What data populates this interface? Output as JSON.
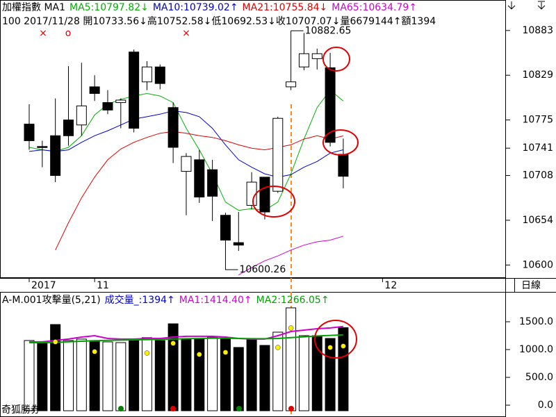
{
  "header": {
    "line1": [
      {
        "text": "加權指數 MA1",
        "color": "#000000"
      },
      {
        "text": "MA5:10797.82↓",
        "color": "#00b000"
      },
      {
        "text": "MA10:10739.02↑",
        "color": "#0000cc"
      },
      {
        "text": "MA21:10755.84↓",
        "color": "#e00000"
      },
      {
        "text": "MA65:10634.79↑",
        "color": "#d000d0"
      }
    ],
    "line2": "100 2017/11/28 開10733.56↓高10752.58↓低10692.53↓收10707.07↓量6679144↑額1394",
    "markers": [
      {
        "text": "×",
        "color": "#e00000"
      },
      {
        "text": "o",
        "color": "#e00000"
      },
      {
        "text": "×",
        "color": "#e00000"
      }
    ]
  },
  "chart_data": [
    {
      "type": "candlestick",
      "categories": [
        "2017",
        null,
        null,
        null,
        null,
        "11",
        null,
        null,
        null,
        null,
        null,
        null,
        null,
        null,
        null,
        null,
        null,
        null,
        null,
        null,
        null,
        null,
        null,
        null,
        null,
        null,
        null,
        "12"
      ],
      "open": [
        10770,
        10743,
        10756,
        10775,
        10769,
        10815,
        10796,
        10796,
        10857,
        10821,
        10839,
        10790,
        10713,
        10727,
        10715,
        10660,
        10627,
        10672,
        10706,
        10689,
        10815,
        10839,
        10849,
        10838,
        10733.56,
        null,
        null,
        null
      ],
      "high": [
        10794,
        10750,
        10801,
        10840,
        10844,
        10829,
        10811,
        10801,
        10860,
        10846,
        10842,
        10796,
        10735,
        10739,
        10727,
        10663,
        10664,
        10712,
        10706,
        10779,
        10882.65,
        10880,
        10861,
        10856,
        10752.58,
        null,
        null,
        null
      ],
      "low": [
        10739,
        10718,
        10700,
        10744,
        10756,
        10798,
        10782,
        10765,
        10760,
        10811,
        10812,
        10723,
        10660,
        10675,
        10653,
        10600.26,
        10617,
        10667,
        10655,
        10687,
        10811,
        10835,
        10836,
        10743,
        10692.53,
        null,
        null,
        null
      ],
      "close": [
        10750,
        10742,
        10708,
        10756,
        10792,
        10807,
        10787,
        10799,
        10765,
        10839,
        10819,
        10742,
        10731,
        10682,
        10683,
        10630,
        10624,
        10700,
        10664,
        10777,
        10821,
        10855,
        10855,
        10748,
        10707.07,
        null,
        null,
        null
      ],
      "up_color": "#ffffff",
      "down_color": "#000000",
      "series": [
        {
          "name": "MA5",
          "color": "#00b000",
          "values": [
            10742,
            10739,
            10737,
            10742,
            10756,
            10781,
            10794,
            10800,
            10804,
            10807,
            10804,
            10796,
            10765,
            10739,
            10710,
            10676,
            10666,
            10668,
            10666,
            10676,
            10710,
            10752,
            10790,
            10811,
            10797.82,
            null,
            null,
            null
          ]
        },
        {
          "name": "MA10",
          "color": "#0000cc",
          "values": [
            10737,
            10739,
            10737,
            10739,
            10748,
            10756,
            10762,
            10769,
            10776,
            10779,
            10782,
            10786,
            10784,
            10779,
            10765,
            10745,
            10727,
            10718,
            10710,
            10706,
            10709,
            10718,
            10725,
            10735,
            10739.02,
            null,
            null,
            null
          ]
        },
        {
          "name": "MA21",
          "color": "#e00000",
          "values": [
            null,
            null,
            10618,
            10651,
            10681,
            10706,
            10727,
            10740,
            10748,
            10754,
            10759,
            10761,
            10759,
            10756,
            10754,
            10750,
            10745,
            10741,
            10739,
            10742,
            10745,
            10752,
            10756,
            10752,
            10755.84,
            null,
            null,
            null
          ]
        },
        {
          "name": "MA65",
          "color": "#d000d0",
          "values": [
            null,
            null,
            null,
            null,
            null,
            null,
            null,
            null,
            null,
            null,
            null,
            null,
            null,
            null,
            null,
            null,
            10588,
            10597,
            10605,
            10611,
            10618,
            10624,
            10628,
            10630,
            10634.79,
            null,
            null,
            null
          ]
        }
      ],
      "annotations": [
        "10882.65",
        "10600.26"
      ],
      "ylim": [
        10586,
        10903
      ],
      "yticks": [
        10600,
        10654,
        10708,
        10741,
        10775,
        10829,
        10883
      ],
      "period": "日線"
    },
    {
      "type": "bar",
      "title": [
        {
          "text": "A-M.001攻擊量(5,21)",
          "color": "#000000"
        },
        {
          "text": "成交量_:1394↑",
          "color": "#0000cc"
        },
        {
          "text": "MA1:1414.40↑",
          "color": "#d000d0"
        },
        {
          "text": "MA2:1266.05↑",
          "color": "#00a000"
        }
      ],
      "values": [
        1163,
        1138,
        1450,
        1163,
        1188,
        1163,
        1138,
        1125,
        1163,
        1213,
        1163,
        1463,
        1200,
        1200,
        1225,
        1200,
        1038,
        1200,
        1075,
        1313,
        1750,
        1250,
        1250,
        1200,
        1394,
        null,
        null,
        null
      ],
      "colors": [
        "#ffffff",
        "#000000",
        "#000000",
        "#ffffff",
        "#ffffff",
        "#000000",
        "#ffffff",
        "#ffffff",
        "#000000",
        "#ffffff",
        "#000000",
        "#000000",
        "#000000",
        "#000000",
        "#ffffff",
        "#000000",
        "#000000",
        "#000000",
        "#000000",
        "#ffffff",
        "#ffffff",
        "#ffffff",
        "#000000",
        "#000000",
        "#000000",
        "#000000",
        "#000000",
        "#000000"
      ],
      "series": [
        {
          "name": "MA1",
          "color": "#d000d0",
          "values": [
            1138,
            1138,
            1163,
            1188,
            1225,
            1250,
            1200,
            1188,
            1188,
            1200,
            1200,
            1225,
            1238,
            1238,
            1238,
            1225,
            1200,
            1188,
            1188,
            1250,
            1325,
            1350,
            1375,
            1388,
            1414.4,
            null,
            null,
            null
          ]
        },
        {
          "name": "MA2",
          "color": "#00a000",
          "values": [
            1125,
            1125,
            1130,
            1140,
            1150,
            1160,
            1165,
            1170,
            1175,
            1180,
            1185,
            1190,
            1195,
            1200,
            1205,
            1205,
            1200,
            1195,
            1195,
            1200,
            1215,
            1230,
            1245,
            1255,
            1266.05,
            null,
            null,
            null
          ]
        }
      ],
      "dots": {
        "color": "#ffee00",
        "values": [
          null,
          null,
          1138,
          null,
          null,
          963,
          null,
          null,
          null,
          938,
          null,
          1113,
          null,
          913,
          null,
          950,
          null,
          null,
          null,
          1038,
          1388,
          null,
          null,
          1038,
          1063,
          null,
          null,
          null
        ]
      },
      "ylim": [
        -100,
        2037
      ],
      "yticks": [
        {
          "value": 0,
          "label": "0.0"
        },
        {
          "value": 500,
          "label": "500.0"
        },
        {
          "value": 1000,
          "label": "1000.0"
        },
        {
          "value": 1500,
          "label": "1500.0"
        }
      ],
      "brand": "奇狐勝券"
    }
  ]
}
